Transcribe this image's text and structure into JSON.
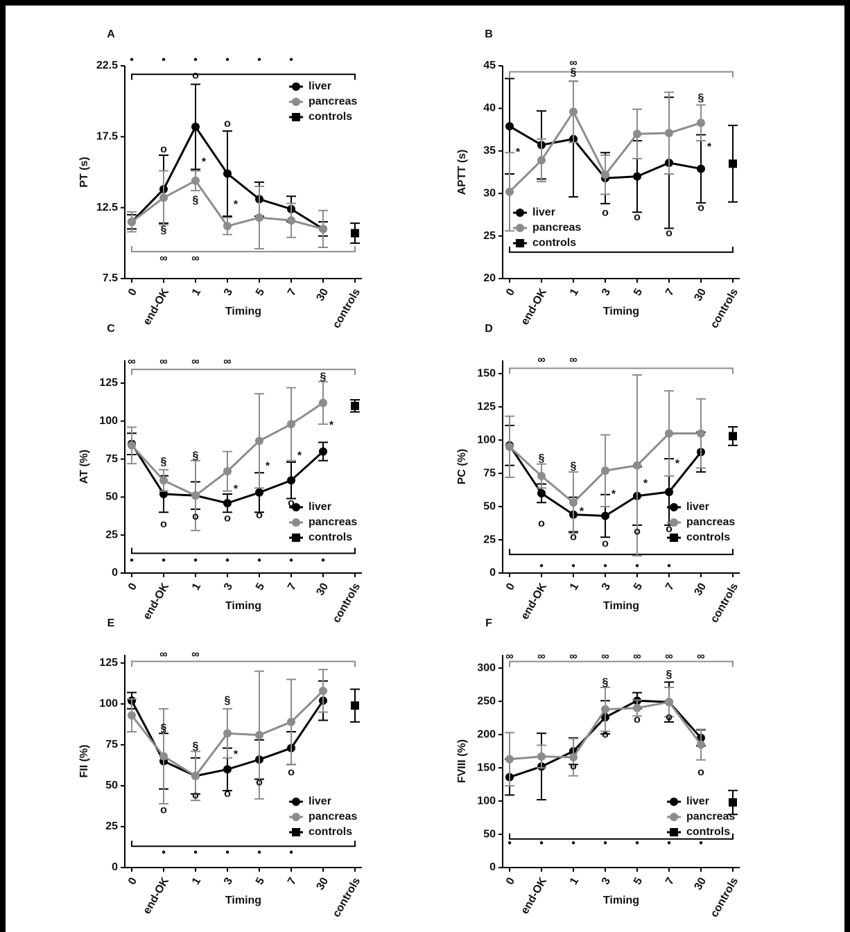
{
  "chart_data": [
    {
      "type": "line",
      "label": "A",
      "ylabel": "PT (s)",
      "xlabel": "Timing",
      "categories": [
        "0",
        "end-OK",
        "1",
        "3",
        "5",
        "7",
        "30",
        "controls"
      ],
      "ylim": [
        7.5,
        22.5
      ],
      "yticks": [
        7.5,
        12.5,
        17.5,
        22.5
      ],
      "legend": "upper right",
      "series": [
        {
          "name": "liver",
          "color": "#000000",
          "values": [
            11.5,
            13.8,
            18.2,
            14.9,
            13.1,
            12.4,
            11.0,
            null
          ],
          "errors": [
            0.5,
            2.4,
            3,
            3,
            1.2,
            0.9,
            0.5,
            null
          ]
        },
        {
          "name": "pancreas",
          "color": "#8c8c8c",
          "values": [
            11.5,
            13.2,
            14.4,
            11.2,
            11.8,
            11.6,
            11.0,
            null
          ],
          "errors": [
            0.7,
            1.9,
            0.7,
            0.6,
            2.2,
            1.2,
            1.3,
            null
          ]
        },
        {
          "name": "controls",
          "color": "#000000",
          "values": [
            null,
            null,
            null,
            null,
            null,
            null,
            null,
            10.7
          ],
          "errors": [
            null,
            null,
            null,
            null,
            null,
            null,
            null,
            0.7
          ]
        }
      ],
      "annotations": [
        {
          "text": "o",
          "x": "end-OK",
          "y": 16.6
        },
        {
          "text": "o",
          "x": "1",
          "y": 21.8
        },
        {
          "text": "o",
          "x": "3",
          "y": 18.4
        },
        {
          "text": "*",
          "x": "1",
          "y": 15.7
        },
        {
          "text": "*",
          "x": "3",
          "y": 12.7
        },
        {
          "text": "§",
          "x": "end-OK",
          "y": 10.9
        },
        {
          "text": "§",
          "x": "1",
          "y": 13.0
        }
      ],
      "brackets": [
        {
          "y": 21.9,
          "color": "#000000",
          "symbol": "•",
          "symbol_y": 22.9,
          "at": [
            "0",
            "end-OK",
            "1",
            "3",
            "5",
            "7"
          ]
        },
        {
          "y": 9.4,
          "color": "#8c8c8c",
          "symbol": "∞",
          "symbol_y": 8.9,
          "at": [
            "end-OK",
            "1"
          ]
        }
      ]
    },
    {
      "type": "line",
      "label": "B",
      "ylabel": "APTT (s)",
      "xlabel": "Timing",
      "categories": [
        "0",
        "end-OK",
        "1",
        "3",
        "5",
        "7",
        "30",
        "controls"
      ],
      "ylim": [
        20,
        45
      ],
      "yticks": [
        20,
        25,
        30,
        35,
        40,
        45
      ],
      "legend": "lower left",
      "series": [
        {
          "name": "liver",
          "color": "#000000",
          "values": [
            37.9,
            35.7,
            36.4,
            31.8,
            32.0,
            33.6,
            32.9,
            null
          ],
          "errors": [
            5.6,
            4,
            6.8,
            3,
            4.2,
            7.7,
            4,
            null
          ]
        },
        {
          "name": "pancreas",
          "color": "#8c8c8c",
          "values": [
            30.2,
            33.9,
            39.6,
            32.2,
            37.0,
            37.1,
            38.3,
            null
          ],
          "errors": [
            4.6,
            2.5,
            3.6,
            2.3,
            2.9,
            4.8,
            2.1,
            null
          ]
        },
        {
          "name": "controls",
          "color": "#000000",
          "values": [
            null,
            null,
            null,
            null,
            null,
            null,
            null,
            33.5
          ],
          "errors": [
            null,
            null,
            null,
            null,
            null,
            null,
            null,
            4.5
          ]
        }
      ],
      "annotations": [
        {
          "text": "*",
          "x": "0",
          "y": 34.8
        },
        {
          "text": "§",
          "x": "1",
          "y": 44.2
        },
        {
          "text": "§",
          "x": "30",
          "y": 41.2
        },
        {
          "text": "*",
          "x": "30",
          "y": 35.4
        },
        {
          "text": "o",
          "x": "3",
          "y": 27.7
        },
        {
          "text": "o",
          "x": "5",
          "y": 27.2
        },
        {
          "text": "o",
          "x": "7",
          "y": 25.3
        },
        {
          "text": "o",
          "x": "30",
          "y": 28.3
        }
      ],
      "brackets": [
        {
          "y": 44.3,
          "color": "#8c8c8c",
          "symbol": "∞",
          "symbol_y": 45.3,
          "at": [
            "1"
          ]
        },
        {
          "y": 23.1,
          "color": "#000000",
          "symbol": "•",
          "symbol_y": 23.1,
          "at": []
        }
      ]
    },
    {
      "type": "line",
      "label": "C",
      "ylabel": "AT (%)",
      "xlabel": "Timing",
      "categories": [
        "0",
        "end-OK",
        "1",
        "3",
        "5",
        "7",
        "30",
        "controls"
      ],
      "ylim": [
        0,
        140
      ],
      "yticks": [
        0,
        25,
        50,
        75,
        100,
        125
      ],
      "legend": "lower right",
      "series": [
        {
          "name": "liver",
          "color": "#000000",
          "values": [
            85,
            52,
            51,
            46,
            53,
            61,
            80,
            null
          ],
          "errors": [
            7,
            12,
            9,
            6,
            13,
            12,
            6,
            null
          ]
        },
        {
          "name": "pancreas",
          "color": "#8c8c8c",
          "values": [
            84,
            61,
            51,
            67,
            87,
            98,
            112,
            null
          ],
          "errors": [
            12,
            7,
            23,
            13,
            31,
            24,
            14,
            null
          ]
        },
        {
          "name": "controls",
          "color": "#000000",
          "values": [
            null,
            null,
            null,
            null,
            null,
            null,
            null,
            110
          ],
          "errors": [
            null,
            null,
            null,
            null,
            null,
            null,
            null,
            4
          ]
        }
      ],
      "annotations": [
        {
          "text": "§",
          "x": "end-OK",
          "y": 73
        },
        {
          "text": "§",
          "x": "1",
          "y": 77
        },
        {
          "text": "§",
          "x": "30",
          "y": 129
        },
        {
          "text": "*",
          "x": "3",
          "y": 55
        },
        {
          "text": "*",
          "x": "5",
          "y": 70
        },
        {
          "text": "*",
          "x": "7",
          "y": 77
        },
        {
          "text": "*",
          "x": "30",
          "y": 97
        },
        {
          "text": "o",
          "x": "end-OK",
          "y": 32
        },
        {
          "text": "o",
          "x": "1",
          "y": 37
        },
        {
          "text": "o",
          "x": "3",
          "y": 36
        },
        {
          "text": "o",
          "x": "5",
          "y": 38
        },
        {
          "text": "o",
          "x": "7",
          "y": 46
        }
      ],
      "brackets": [
        {
          "y": 134,
          "color": "#8c8c8c",
          "symbol": "∞",
          "symbol_y": 139,
          "at": [
            "0",
            "end-OK",
            "1",
            "3"
          ]
        },
        {
          "y": 13,
          "color": "#000000",
          "symbol": "•",
          "symbol_y": 8,
          "at": [
            "0",
            "end-OK",
            "1",
            "3",
            "5",
            "7",
            "30"
          ]
        }
      ]
    },
    {
      "type": "line",
      "label": "D",
      "ylabel": "PC (%)",
      "xlabel": "Timing",
      "categories": [
        "0",
        "end-OK",
        "1",
        "3",
        "5",
        "7",
        "30",
        "controls"
      ],
      "ylim": [
        0,
        160
      ],
      "yticks": [
        0,
        25,
        50,
        75,
        100,
        125,
        150
      ],
      "legend": "lower right",
      "series": [
        {
          "name": "liver",
          "color": "#000000",
          "values": [
            96,
            60,
            44,
            43,
            58,
            61,
            91,
            null
          ],
          "errors": [
            15,
            7,
            13,
            16,
            22,
            25,
            15,
            null
          ]
        },
        {
          "name": "pancreas",
          "color": "#8c8c8c",
          "values": [
            95,
            73,
            53,
            77,
            81,
            105,
            105,
            null
          ],
          "errors": [
            23,
            9,
            23,
            27,
            68,
            32,
            26,
            null
          ]
        },
        {
          "name": "controls",
          "color": "#000000",
          "values": [
            null,
            null,
            null,
            null,
            null,
            null,
            null,
            103
          ],
          "errors": [
            null,
            null,
            null,
            null,
            null,
            null,
            null,
            7
          ]
        }
      ],
      "annotations": [
        {
          "text": "§",
          "x": "end-OK",
          "y": 86
        },
        {
          "text": "§",
          "x": "1",
          "y": 80
        },
        {
          "text": "*",
          "x": "1",
          "y": 46
        },
        {
          "text": "*",
          "x": "3",
          "y": 59
        },
        {
          "text": "*",
          "x": "5",
          "y": 67
        },
        {
          "text": "*",
          "x": "7",
          "y": 82
        },
        {
          "text": "o",
          "x": "end-OK",
          "y": 37
        },
        {
          "text": "o",
          "x": "1",
          "y": 27
        },
        {
          "text": "o",
          "x": "3",
          "y": 22
        },
        {
          "text": "o",
          "x": "5",
          "y": 31
        },
        {
          "text": "o",
          "x": "7",
          "y": 33
        }
      ],
      "brackets": [
        {
          "y": 154,
          "color": "#8c8c8c",
          "symbol": "∞",
          "symbol_y": 160,
          "at": [
            "end-OK",
            "1"
          ]
        },
        {
          "y": 14,
          "color": "#000000",
          "symbol": "•",
          "symbol_y": 5,
          "at": [
            "end-OK",
            "1",
            "3",
            "5",
            "7"
          ]
        }
      ]
    },
    {
      "type": "line",
      "label": "E",
      "ylabel": "FII (%)",
      "xlabel": "Timing",
      "categories": [
        "0",
        "end-OK",
        "1",
        "3",
        "5",
        "7",
        "30",
        "controls"
      ],
      "ylim": [
        0,
        130
      ],
      "yticks": [
        0,
        25,
        50,
        75,
        100,
        125
      ],
      "legend": "lower right",
      "series": [
        {
          "name": "liver",
          "color": "#000000",
          "values": [
            102,
            65,
            56,
            60,
            66,
            73,
            102,
            null
          ],
          "errors": [
            5,
            17,
            11,
            13,
            12,
            10,
            12,
            null
          ]
        },
        {
          "name": "pancreas",
          "color": "#8c8c8c",
          "values": [
            93,
            68,
            56,
            82,
            81,
            89,
            108,
            null
          ],
          "errors": [
            10,
            29,
            15,
            15,
            39,
            26,
            13,
            null
          ]
        },
        {
          "name": "controls",
          "color": "#000000",
          "values": [
            null,
            null,
            null,
            null,
            null,
            null,
            null,
            99
          ],
          "errors": [
            null,
            null,
            null,
            null,
            null,
            null,
            null,
            10
          ]
        }
      ],
      "annotations": [
        {
          "text": "§",
          "x": "end-OK",
          "y": 85
        },
        {
          "text": "§",
          "x": "1",
          "y": 74
        },
        {
          "text": "§",
          "x": "3",
          "y": 102
        },
        {
          "text": "*",
          "x": "3",
          "y": 69
        },
        {
          "text": "o",
          "x": "end-OK",
          "y": 35
        },
        {
          "text": "o",
          "x": "1",
          "y": 44
        },
        {
          "text": "o",
          "x": "3",
          "y": 45
        },
        {
          "text": "o",
          "x": "5",
          "y": 52
        },
        {
          "text": "o",
          "x": "7",
          "y": 58
        }
      ],
      "brackets": [
        {
          "y": 126,
          "color": "#8c8c8c",
          "symbol": "∞",
          "symbol_y": 130,
          "at": [
            "end-OK",
            "1"
          ]
        },
        {
          "y": 13,
          "color": "#000000",
          "symbol": "•",
          "symbol_y": 9,
          "at": [
            "end-OK",
            "1",
            "3",
            "5",
            "7"
          ]
        }
      ]
    },
    {
      "type": "line",
      "label": "F",
      "ylabel": "FVIII (%)",
      "xlabel": "Timing",
      "categories": [
        "0",
        "end-OK",
        "1",
        "3",
        "5",
        "7",
        "30",
        "controls"
      ],
      "ylim": [
        0,
        320
      ],
      "yticks": [
        0,
        50,
        100,
        150,
        200,
        250,
        300
      ],
      "legend": "lower right",
      "series": [
        {
          "name": "liver",
          "color": "#000000",
          "values": [
            136,
            152,
            175,
            226,
            251,
            249,
            195,
            null
          ],
          "errors": [
            27,
            50,
            20,
            25,
            12,
            30,
            12,
            null
          ]
        },
        {
          "name": "pancreas",
          "color": "#8c8c8c",
          "values": [
            163,
            167,
            166,
            238,
            240,
            249,
            185,
            null
          ],
          "errors": [
            40,
            17,
            28,
            33,
            12,
            22,
            23,
            null
          ]
        },
        {
          "name": "controls",
          "color": "#000000",
          "values": [
            null,
            null,
            null,
            null,
            null,
            null,
            null,
            98
          ],
          "errors": [
            null,
            null,
            null,
            null,
            null,
            null,
            null,
            18
          ]
        }
      ],
      "annotations": [
        {
          "text": "§",
          "x": "3",
          "y": 278
        },
        {
          "text": "§",
          "x": "7",
          "y": 290
        },
        {
          "text": "o",
          "x": "1",
          "y": 152
        },
        {
          "text": "o",
          "x": "3",
          "y": 200
        },
        {
          "text": "o",
          "x": "5",
          "y": 222
        },
        {
          "text": "o",
          "x": "7",
          "y": 226
        },
        {
          "text": "o",
          "x": "30",
          "y": 143
        }
      ],
      "brackets": [
        {
          "y": 310,
          "color": "#8c8c8c",
          "symbol": "∞",
          "symbol_y": 317,
          "at": [
            "0",
            "end-OK",
            "1",
            "3",
            "5",
            "7",
            "30"
          ]
        },
        {
          "y": 43,
          "color": "#000000",
          "symbol": "•",
          "symbol_y": 36,
          "at": [
            "0",
            "end-OK",
            "1",
            "3",
            "5",
            "7",
            "30"
          ]
        }
      ]
    }
  ]
}
